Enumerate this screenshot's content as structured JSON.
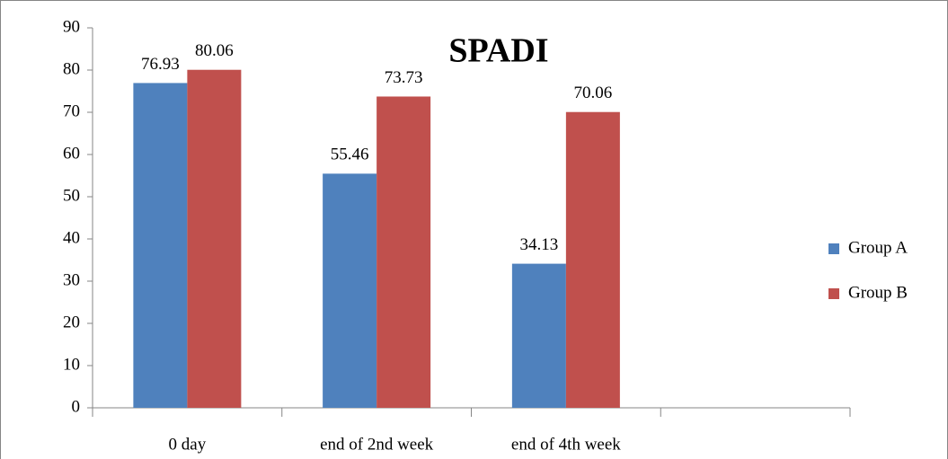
{
  "chart_data": {
    "type": "bar",
    "title": "SPADI",
    "categories": [
      "0 day",
      "end of 2nd week",
      "end of 4th week",
      null
    ],
    "series": [
      {
        "name": "Group A",
        "color": "#4f81bd",
        "values": [
          76.93,
          55.46,
          34.13,
          null
        ]
      },
      {
        "name": "Group B",
        "color": "#c0504d",
        "values": [
          80.06,
          73.73,
          70.06,
          null
        ]
      }
    ],
    "ylim": [
      0,
      90
    ],
    "yticks": [
      0,
      10,
      20,
      30,
      40,
      50,
      60,
      70,
      80,
      90
    ],
    "grid": false,
    "legend": "right"
  }
}
